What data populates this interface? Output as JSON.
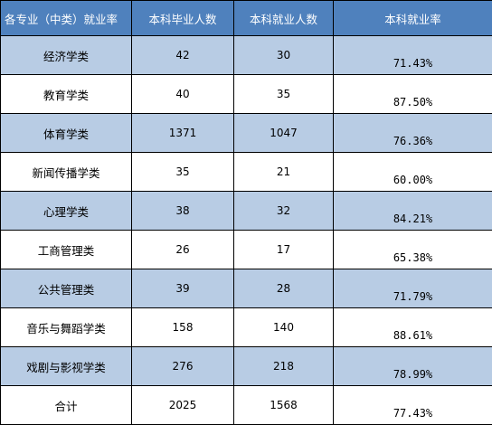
{
  "table": {
    "headers": [
      "各专业（中类）就业率",
      "本科毕业人数",
      "本科就业人数",
      "本科就业率"
    ],
    "rows": [
      {
        "major": "经济学类",
        "graduates": "42",
        "employed": "30",
        "rate": "71.43%"
      },
      {
        "major": "教育学类",
        "graduates": "40",
        "employed": "35",
        "rate": "87.50%"
      },
      {
        "major": "体育学类",
        "graduates": "1371",
        "employed": "1047",
        "rate": "76.36%"
      },
      {
        "major": "新闻传播学类",
        "graduates": "35",
        "employed": "21",
        "rate": "60.00%"
      },
      {
        "major": "心理学类",
        "graduates": "38",
        "employed": "32",
        "rate": "84.21%"
      },
      {
        "major": "工商管理类",
        "graduates": "26",
        "employed": "17",
        "rate": "65.38%"
      },
      {
        "major": "公共管理类",
        "graduates": "39",
        "employed": "28",
        "rate": "71.79%"
      },
      {
        "major": "音乐与舞蹈学类",
        "graduates": "158",
        "employed": "140",
        "rate": "88.61%"
      },
      {
        "major": "戏剧与影视学类",
        "graduates": "276",
        "employed": "218",
        "rate": "78.99%"
      },
      {
        "major": "合计",
        "graduates": "2025",
        "employed": "1568",
        "rate": "77.43%"
      }
    ]
  },
  "colors": {
    "header_bg": "#4f81bd",
    "band_bg": "#b8cce4",
    "header_text": "#ffffff"
  }
}
